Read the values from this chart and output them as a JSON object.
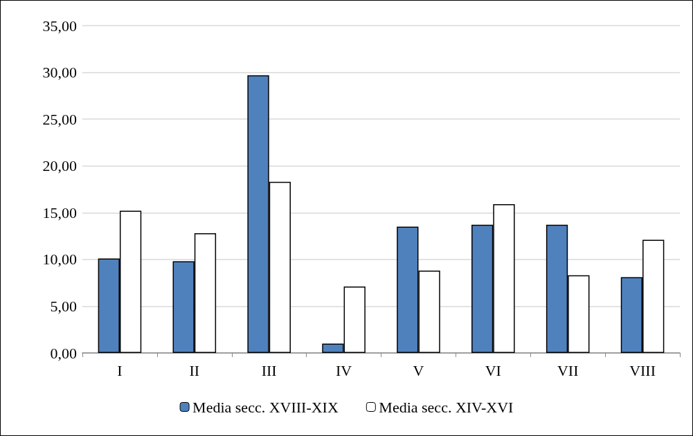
{
  "chart_data": {
    "type": "bar",
    "categories": [
      "I",
      "II",
      "III",
      "IV",
      "V",
      "VI",
      "VII",
      "VIII"
    ],
    "series": [
      {
        "name": "Media secc. XVIII-XIX",
        "color": "#4f81bd",
        "values": [
          10.1,
          9.8,
          29.7,
          1.0,
          13.5,
          13.7,
          13.7,
          8.1
        ]
      },
      {
        "name": "Media secc. XIV-XVI",
        "color": "#ffffff",
        "values": [
          15.2,
          12.8,
          18.3,
          7.1,
          8.8,
          15.9,
          8.3,
          12.1
        ]
      }
    ],
    "ylim": [
      0,
      35
    ],
    "yticks": [
      {
        "value": 0,
        "label": "0,00"
      },
      {
        "value": 5,
        "label": "5,00"
      },
      {
        "value": 10,
        "label": "10,00"
      },
      {
        "value": 15,
        "label": "15,00"
      },
      {
        "value": 20,
        "label": "20,00"
      },
      {
        "value": 25,
        "label": "25,00"
      },
      {
        "value": 30,
        "label": "30,00"
      },
      {
        "value": 35,
        "label": "35,00"
      }
    ],
    "grid": "y",
    "legend": "bottom"
  }
}
